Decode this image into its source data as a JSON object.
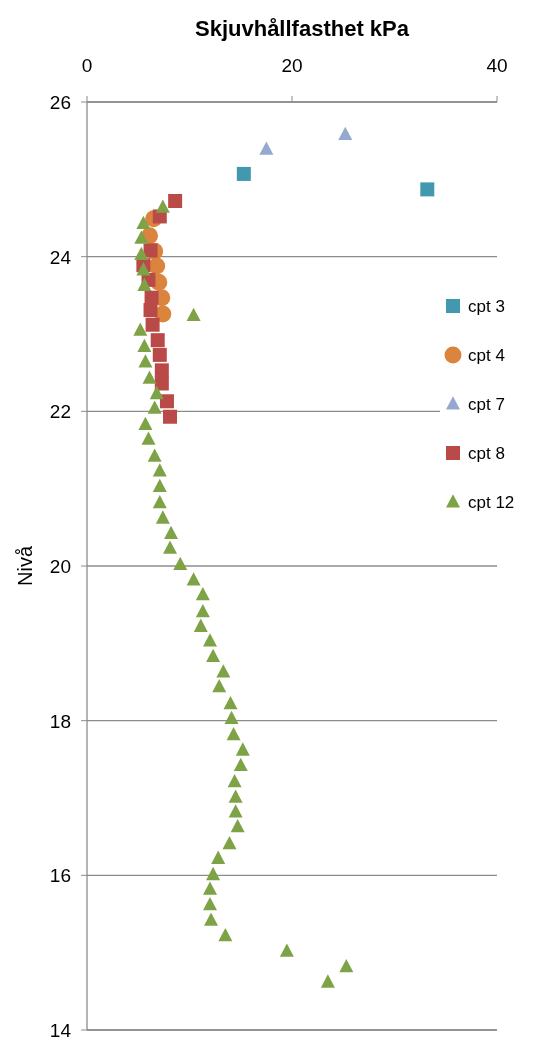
{
  "chart_data": {
    "type": "scatter",
    "title": "Skjuvhållfasthet kPa",
    "ylabel": "Nivå",
    "xlim": [
      0,
      40
    ],
    "xticks": [
      0,
      20,
      40
    ],
    "ylim": [
      14,
      26
    ],
    "yticks": [
      14,
      16,
      18,
      20,
      22,
      24,
      26
    ],
    "grid": "y",
    "legend": "right",
    "series": [
      {
        "name": "cpt 3",
        "color": "#4198af",
        "marker": "square",
        "x": [
          15.3,
          33.2
        ],
        "values": [
          25.07,
          24.87
        ]
      },
      {
        "name": "cpt 4",
        "color": "#db843d",
        "marker": "circle",
        "x": [
          6.5,
          6.1,
          6.6,
          6.8,
          7.0,
          7.3,
          7.4
        ],
        "values": [
          24.49,
          24.27,
          24.07,
          23.88,
          23.67,
          23.47,
          23.26
        ]
      },
      {
        "name": "cpt 7",
        "color": "#93a9cf",
        "marker": "triangle",
        "x": [
          17.5,
          25.2
        ],
        "values": [
          25.39,
          25.58
        ]
      },
      {
        "name": "cpt 8",
        "color": "#b94a48",
        "marker": "square",
        "x": [
          8.6,
          7.1,
          6.2,
          5.5,
          6.0,
          6.3,
          6.2,
          6.4,
          6.9,
          7.1,
          7.3,
          7.3,
          7.8,
          8.1
        ],
        "values": [
          24.72,
          24.52,
          24.08,
          23.89,
          23.7,
          23.47,
          23.31,
          23.12,
          22.92,
          22.73,
          22.53,
          22.36,
          22.13,
          21.93
        ]
      },
      {
        "name": "cpt 12",
        "color": "#7ea346",
        "marker": "triangle",
        "x": [
          7.4,
          5.5,
          5.3,
          5.3,
          5.5,
          5.6,
          10.4,
          5.2,
          5.6,
          5.7,
          6.1,
          6.8,
          6.6,
          5.7,
          6.0,
          6.6,
          7.1,
          7.1,
          7.1,
          7.4,
          8.2,
          8.1,
          9.1,
          10.4,
          11.3,
          11.3,
          11.1,
          12.0,
          12.3,
          13.3,
          12.9,
          14.0,
          14.1,
          14.3,
          15.2,
          15.0,
          14.4,
          14.5,
          14.5,
          14.7,
          13.9,
          12.8,
          12.3,
          12.0,
          12.0,
          12.1,
          13.5,
          19.5,
          25.3,
          23.5
        ],
        "values": [
          24.64,
          24.43,
          24.24,
          24.03,
          23.83,
          23.63,
          23.24,
          23.05,
          22.84,
          22.64,
          22.43,
          22.23,
          22.04,
          21.83,
          21.64,
          21.42,
          21.23,
          21.03,
          20.82,
          20.62,
          20.42,
          20.23,
          20.02,
          19.82,
          19.63,
          19.41,
          19.22,
          19.03,
          18.83,
          18.63,
          18.44,
          18.22,
          18.03,
          17.82,
          17.62,
          17.42,
          17.21,
          17.01,
          16.82,
          16.63,
          16.41,
          16.22,
          16.01,
          15.82,
          15.62,
          15.42,
          15.22,
          15.02,
          14.82,
          14.62
        ]
      }
    ]
  }
}
